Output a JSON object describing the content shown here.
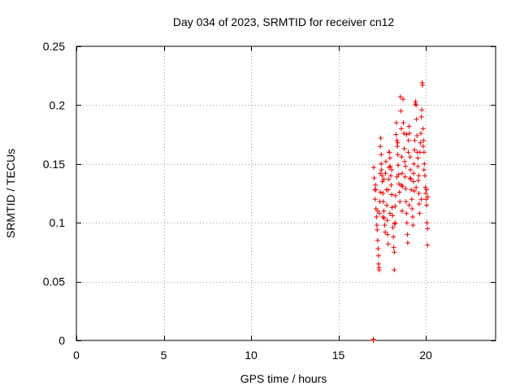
{
  "chart_data": {
    "type": "scatter",
    "title": "Day 034 of 2023, SRMTID for receiver cn12",
    "xlabel": "GPS time / hours",
    "ylabel": "SRMTID / TECUs",
    "xlim": [
      0,
      24
    ],
    "ylim": [
      0,
      0.25
    ],
    "xticks": [
      0,
      5,
      10,
      15,
      20
    ],
    "yticks": [
      0,
      0.05,
      0.1,
      0.15,
      0.2,
      0.25
    ],
    "xtick_labels": [
      "0",
      "5",
      "10",
      "15",
      "20"
    ],
    "ytick_labels": [
      "0",
      "0.05",
      "0.1",
      "0.15",
      "0.2",
      "0.25"
    ],
    "grid": true,
    "marker": "plus",
    "color": "#ee0000",
    "series": [
      {
        "name": "cn12",
        "points": [
          [
            17.0,
            0.0
          ],
          [
            17.0,
            0.001
          ],
          [
            17.02,
            0.147
          ],
          [
            17.05,
            0.138
          ],
          [
            17.08,
            0.128
          ],
          [
            17.1,
            0.12
          ],
          [
            17.12,
            0.132
          ],
          [
            17.15,
            0.112
          ],
          [
            17.18,
            0.105
          ],
          [
            17.2,
            0.098
          ],
          [
            17.22,
            0.094
          ],
          [
            17.25,
            0.085
          ],
          [
            17.27,
            0.078
          ],
          [
            17.3,
            0.072
          ],
          [
            17.3,
            0.065
          ],
          [
            17.32,
            0.062
          ],
          [
            17.33,
            0.06
          ],
          [
            17.35,
            0.108
          ],
          [
            17.37,
            0.118
          ],
          [
            17.4,
            0.126
          ],
          [
            17.4,
            0.165
          ],
          [
            17.42,
            0.172
          ],
          [
            17.45,
            0.158
          ],
          [
            17.47,
            0.145
          ],
          [
            17.5,
            0.14
          ],
          [
            17.52,
            0.135
          ],
          [
            17.55,
            0.125
          ],
          [
            17.57,
            0.118
          ],
          [
            17.6,
            0.11
          ],
          [
            17.62,
            0.104
          ],
          [
            17.65,
            0.098
          ],
          [
            17.68,
            0.092
          ],
          [
            17.7,
            0.142
          ],
          [
            17.72,
            0.152
          ],
          [
            17.75,
            0.128
          ],
          [
            17.77,
            0.115
          ],
          [
            17.8,
            0.102
          ],
          [
            17.82,
            0.09
          ],
          [
            17.85,
            0.082
          ],
          [
            17.87,
            0.137
          ],
          [
            17.9,
            0.147
          ],
          [
            17.92,
            0.16
          ],
          [
            17.95,
            0.155
          ],
          [
            17.97,
            0.148
          ],
          [
            18.0,
            0.14
          ],
          [
            18.02,
            0.132
          ],
          [
            18.05,
            0.124
          ],
          [
            18.07,
            0.113
          ],
          [
            18.1,
            0.106
          ],
          [
            18.12,
            0.096
          ],
          [
            18.15,
            0.088
          ],
          [
            18.17,
            0.079
          ],
          [
            18.2,
            0.075
          ],
          [
            18.2,
            0.06
          ],
          [
            18.22,
            0.099
          ],
          [
            18.25,
            0.114
          ],
          [
            18.27,
            0.123
          ],
          [
            18.3,
            0.175
          ],
          [
            18.32,
            0.185
          ],
          [
            18.35,
            0.17
          ],
          [
            18.37,
            0.165
          ],
          [
            18.4,
            0.158
          ],
          [
            18.42,
            0.149
          ],
          [
            18.45,
            0.141
          ],
          [
            18.47,
            0.133
          ],
          [
            18.5,
            0.126
          ],
          [
            18.52,
            0.118
          ],
          [
            18.55,
            0.207
          ],
          [
            18.57,
            0.195
          ],
          [
            18.6,
            0.18
          ],
          [
            18.62,
            0.156
          ],
          [
            18.65,
            0.142
          ],
          [
            18.67,
            0.131
          ],
          [
            18.7,
            0.205
          ],
          [
            18.72,
            0.185
          ],
          [
            18.75,
            0.176
          ],
          [
            18.77,
            0.163
          ],
          [
            18.8,
            0.152
          ],
          [
            18.82,
            0.139
          ],
          [
            18.85,
            0.129
          ],
          [
            18.87,
            0.118
          ],
          [
            18.9,
            0.108
          ],
          [
            18.92,
            0.1
          ],
          [
            18.95,
            0.09
          ],
          [
            18.97,
            0.083
          ],
          [
            19.0,
            0.16
          ],
          [
            19.02,
            0.17
          ],
          [
            19.05,
            0.182
          ],
          [
            19.07,
            0.176
          ],
          [
            19.1,
            0.156
          ],
          [
            19.12,
            0.145
          ],
          [
            19.15,
            0.137
          ],
          [
            19.17,
            0.128
          ],
          [
            19.2,
            0.12
          ],
          [
            19.22,
            0.112
          ],
          [
            19.25,
            0.105
          ],
          [
            19.27,
            0.098
          ],
          [
            19.3,
            0.135
          ],
          [
            19.32,
            0.15
          ],
          [
            19.35,
            0.162
          ],
          [
            19.37,
            0.17
          ],
          [
            19.4,
            0.201
          ],
          [
            19.42,
            0.203
          ],
          [
            19.45,
            0.2
          ],
          [
            19.47,
            0.188
          ],
          [
            19.5,
            0.174
          ],
          [
            19.52,
            0.16
          ],
          [
            19.55,
            0.148
          ],
          [
            19.57,
            0.136
          ],
          [
            19.6,
            0.125
          ],
          [
            19.62,
            0.116
          ],
          [
            19.65,
            0.108
          ],
          [
            19.67,
            0.16
          ],
          [
            19.7,
            0.168
          ],
          [
            19.72,
            0.176
          ],
          [
            19.75,
            0.19
          ],
          [
            19.77,
            0.196
          ],
          [
            19.8,
            0.219
          ],
          [
            19.82,
            0.217
          ],
          [
            19.85,
            0.18
          ],
          [
            19.87,
            0.17
          ],
          [
            19.9,
            0.16
          ],
          [
            19.92,
            0.15
          ],
          [
            19.95,
            0.14
          ],
          [
            19.97,
            0.13
          ],
          [
            20.0,
            0.125
          ],
          [
            20.02,
            0.12
          ],
          [
            20.05,
            0.115
          ],
          [
            20.07,
            0.1
          ],
          [
            20.1,
            0.095
          ],
          [
            20.1,
            0.081
          ],
          [
            20.12,
            0.122
          ],
          [
            17.15,
            0.128
          ],
          [
            17.4,
            0.142
          ],
          [
            17.6,
            0.137
          ],
          [
            17.85,
            0.128
          ],
          [
            18.05,
            0.145
          ],
          [
            18.35,
            0.139
          ],
          [
            18.6,
            0.132
          ],
          [
            18.85,
            0.148
          ],
          [
            19.1,
            0.138
          ],
          [
            19.35,
            0.127
          ],
          [
            19.6,
            0.14
          ],
          [
            19.85,
            0.165
          ],
          [
            17.25,
            0.11
          ],
          [
            17.55,
            0.105
          ],
          [
            17.95,
            0.108
          ],
          [
            18.25,
            0.1
          ],
          [
            18.65,
            0.11
          ],
          [
            19.05,
            0.115
          ],
          [
            19.45,
            0.13
          ],
          [
            19.75,
            0.12
          ],
          [
            17.45,
            0.15
          ],
          [
            17.9,
            0.16
          ],
          [
            18.4,
            0.168
          ],
          [
            18.9,
            0.175
          ],
          [
            19.3,
            0.142
          ],
          [
            19.55,
            0.155
          ],
          [
            19.9,
            0.145
          ],
          [
            20.05,
            0.128
          ]
        ]
      }
    ]
  }
}
